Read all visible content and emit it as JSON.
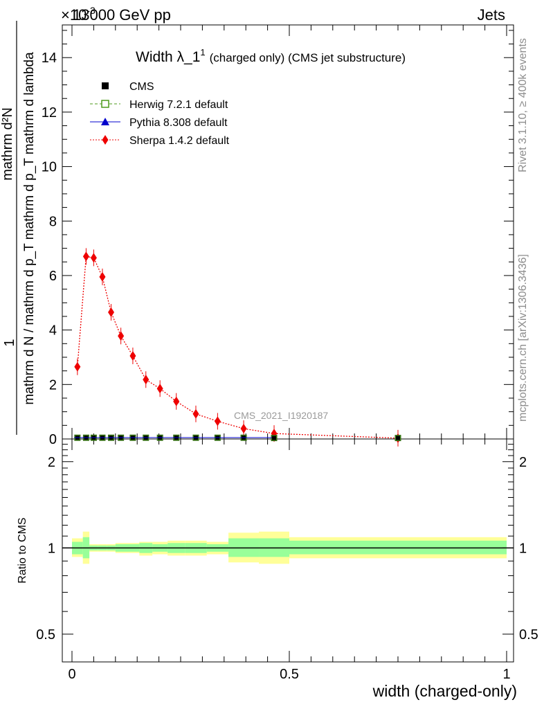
{
  "header": {
    "left": "13000 GeV pp",
    "right": "Jets",
    "exponent": "×10",
    "exponent_power": "-3"
  },
  "plot_title": {
    "main": "Width λ_1",
    "superscript": "1",
    "detail": "(charged only) (CMS jet substructure)"
  },
  "y_axis_label": {
    "line1": "1",
    "line2": "mathrm d N / mathrm d p_T mathrm d p_T mathrm d lambda",
    "numerator": "mathrm d²N",
    "denominator": "mathrm d N / mathrm d p_T mathrm d p_T mathrm d lambda"
  },
  "side_labels": {
    "rivet": "Rivet 3.1.10, ≥ 400k events",
    "mcplots": "mcplots.cern.ch [arXiv:1306.3436]"
  },
  "watermark": "CMS_2021_I1920187",
  "legend": [
    {
      "label": "CMS",
      "color": "#000000",
      "marker": "square-filled"
    },
    {
      "label": "Herwig 7.2.1 default",
      "color": "#4d9a1b",
      "marker": "square-open",
      "line": "dashed"
    },
    {
      "label": "Pythia 8.308 default",
      "color": "#0000cc",
      "marker": "triangle",
      "line": "solid"
    },
    {
      "label": "Sherpa 1.4.2 default",
      "color": "#ee0000",
      "marker": "diamond",
      "line": "dotted"
    }
  ],
  "ratio_y_label": "Ratio to CMS",
  "x_axis_label": "width (charged-only)",
  "chart_data": {
    "type": "line",
    "xlabel": "width (charged-only)",
    "ylabel": "1 / mathrm d N / mathrm d p_T mathrm d p_T mathrm d lambda · mathrm d²N",
    "xlim": [
      0,
      1
    ],
    "ylim": [
      0,
      15.2
    ],
    "y_scale_factor": "×10^-3",
    "x_ticks": [
      0,
      0.5,
      1
    ],
    "x_tick_labels": [
      "0",
      "0.5",
      "1"
    ],
    "y_ticks": [
      0,
      2,
      4,
      6,
      8,
      10,
      12,
      14
    ],
    "y_tick_labels": [
      "0",
      "2",
      "4",
      "6",
      "8",
      "10",
      "12",
      "14"
    ],
    "bin_edges": [
      0,
      0.025,
      0.04,
      0.06,
      0.08,
      0.1,
      0.125,
      0.155,
      0.185,
      0.22,
      0.26,
      0.31,
      0.36,
      0.43,
      0.5,
      1.0
    ],
    "x": [
      0.0125,
      0.0325,
      0.05,
      0.07,
      0.09,
      0.1125,
      0.14,
      0.17,
      0.2025,
      0.24,
      0.285,
      0.335,
      0.395,
      0.465,
      0.75
    ],
    "series": [
      {
        "name": "CMS",
        "values": [
          0.02,
          0.02,
          0.02,
          0.02,
          0.02,
          0.02,
          0.02,
          0.02,
          0.02,
          0.02,
          0.02,
          0.02,
          0.02,
          0.01,
          0.01
        ]
      },
      {
        "name": "Herwig 7.2.1 default",
        "values": [
          0.02,
          0.02,
          0.02,
          0.02,
          0.02,
          0.02,
          0.02,
          0.02,
          0.02,
          0.02,
          0.02,
          0.02,
          0.02,
          0.01,
          0.01
        ]
      },
      {
        "name": "Pythia 8.308 default",
        "values": [
          0.02,
          0.02,
          0.02,
          0.02,
          0.02,
          0.02,
          0.02,
          0.02,
          0.02,
          0.02,
          0.02,
          0.02,
          0.02,
          0.01,
          0.01
        ]
      },
      {
        "name": "Sherpa 1.4.2 default",
        "values": [
          2.65,
          6.7,
          6.65,
          5.95,
          4.65,
          3.78,
          3.05,
          2.18,
          1.85,
          1.38,
          0.92,
          0.65,
          0.38,
          0.2,
          0.03
        ]
      }
    ],
    "ratio": {
      "ylabel": "Ratio to CMS",
      "ylim": [
        0.4,
        2.4
      ],
      "log_scale": true,
      "y_ticks": [
        0.5,
        1,
        2
      ],
      "y_tick_labels": [
        "0.5",
        "1",
        "2"
      ],
      "band_inner": [
        [
          0.95,
          1.05
        ],
        [
          0.92,
          1.09
        ],
        [
          0.98,
          1.02
        ],
        [
          0.98,
          1.02
        ],
        [
          0.98,
          1.02
        ],
        [
          0.97,
          1.03
        ],
        [
          0.97,
          1.03
        ],
        [
          0.96,
          1.04
        ],
        [
          0.97,
          1.03
        ],
        [
          0.96,
          1.04
        ],
        [
          0.96,
          1.04
        ],
        [
          0.97,
          1.03
        ],
        [
          0.93,
          1.08
        ],
        [
          0.93,
          1.08
        ],
        [
          0.95,
          1.06
        ]
      ],
      "band_outer": [
        [
          0.93,
          1.08
        ],
        [
          0.88,
          1.14
        ],
        [
          0.97,
          1.03
        ],
        [
          0.97,
          1.03
        ],
        [
          0.97,
          1.03
        ],
        [
          0.96,
          1.04
        ],
        [
          0.96,
          1.04
        ],
        [
          0.94,
          1.05
        ],
        [
          0.95,
          1.05
        ],
        [
          0.94,
          1.06
        ],
        [
          0.94,
          1.06
        ],
        [
          0.95,
          1.05
        ],
        [
          0.89,
          1.13
        ],
        [
          0.88,
          1.14
        ],
        [
          0.92,
          1.09
        ]
      ]
    },
    "grid": false,
    "legend_position": "top-left"
  }
}
